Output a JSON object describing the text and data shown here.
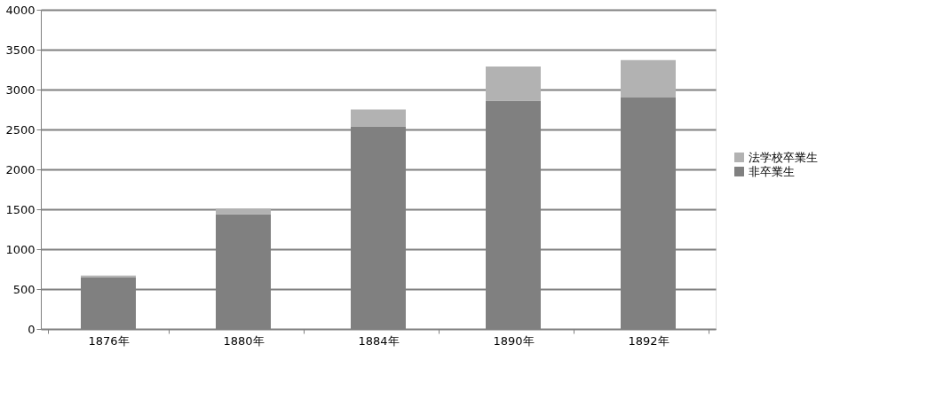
{
  "chart_data": {
    "type": "bar",
    "stacked": true,
    "categories": [
      "1876年",
      "1880年",
      "1884年",
      "1890年",
      "1892年"
    ],
    "series": [
      {
        "name": "非卒業生",
        "color": "#808080",
        "values": [
          650,
          1440,
          2540,
          2860,
          2900
        ]
      },
      {
        "name": "法学校卒業生",
        "color": "#b2b2b2",
        "values": [
          20,
          70,
          210,
          430,
          470
        ]
      }
    ],
    "ylim": [
      0,
      4000
    ],
    "yticks": [
      0,
      500,
      1000,
      1500,
      2000,
      2500,
      3000,
      3500,
      4000
    ],
    "grid": "y",
    "legend": "right"
  }
}
